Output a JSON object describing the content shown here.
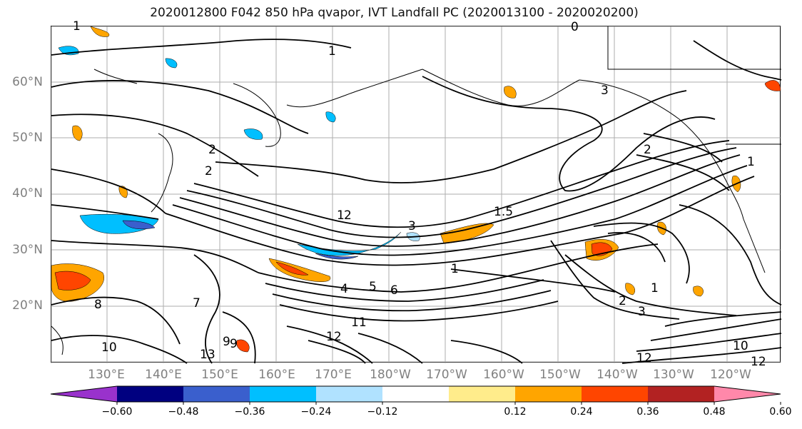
{
  "title": "2020012800 F042 850 hPa qvapor, IVT Landfall PC (2020013100 - 2020020200)",
  "lat_labels": [
    "60°N",
    "50°N",
    "40°N",
    "30°N",
    "20°N"
  ],
  "lon_labels": [
    "130°E",
    "140°E",
    "150°E",
    "160°E",
    "170°E",
    "180°W",
    "170°W",
    "160°W",
    "150°W",
    "140°W",
    "130°W",
    "120°W"
  ],
  "colorbar": {
    "colors": [
      "#9932cc",
      "#000080",
      "#3a5fcd",
      "#00bfff",
      "#b0e2ff",
      "#ffffff",
      "#ffec8b",
      "#ffa500",
      "#ff4500",
      "#b22222",
      "#ff88aa"
    ],
    "ticks": [
      "−0.60",
      "−0.48",
      "−0.36",
      "−0.24",
      "−0.12",
      "0.12",
      "0.24",
      "0.36",
      "0.48",
      "0.60"
    ]
  },
  "contour_labels": [
    "1",
    "0",
    "1",
    "3",
    "2",
    "2",
    "2",
    "1",
    "1",
    "8",
    "7",
    "12",
    "11",
    "13",
    "9",
    "4",
    "5",
    "6",
    "10",
    "2",
    "3",
    "1",
    "12",
    "12",
    "10",
    "9",
    "1.5",
    "3",
    "2",
    "1"
  ]
}
